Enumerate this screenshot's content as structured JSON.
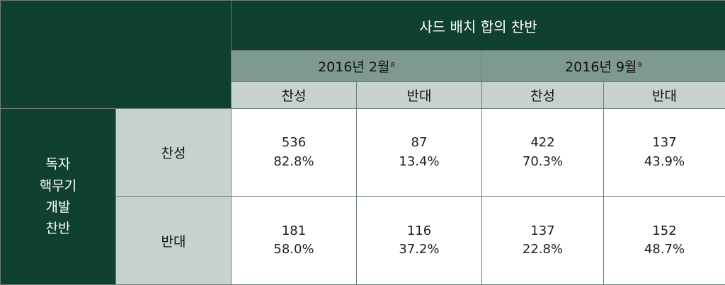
{
  "top_header": "사드 배치 합의 찬반",
  "periods": [
    {
      "label": "2016년 2월",
      "footnote": "8"
    },
    {
      "label": "2016년 9월",
      "footnote": "9"
    }
  ],
  "vote_labels": {
    "for": "찬성",
    "against": "반대"
  },
  "row_group_label": [
    "독자",
    "핵무기",
    "개발",
    "찬반"
  ],
  "rows": [
    {
      "label": "찬성",
      "cells": [
        {
          "count": "536",
          "pct": "82.8%"
        },
        {
          "count": "87",
          "pct": "13.4%"
        },
        {
          "count": "422",
          "pct": "70.3%"
        },
        {
          "count": "137",
          "pct": "43.9%"
        }
      ]
    },
    {
      "label": "반대",
      "cells": [
        {
          "count": "181",
          "pct": "58.0%"
        },
        {
          "count": "116",
          "pct": "37.2%"
        },
        {
          "count": "137",
          "pct": "22.8%"
        },
        {
          "count": "152",
          "pct": "48.7%"
        }
      ]
    }
  ],
  "colors": {
    "dark_green": "#0f4030",
    "mid_green": "#7d9990",
    "light_green": "#c7d1ce"
  }
}
